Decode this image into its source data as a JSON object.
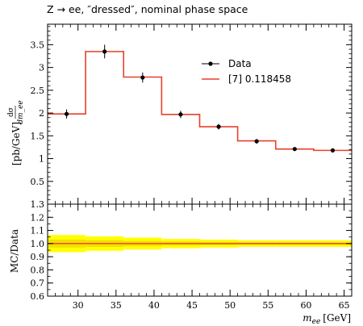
{
  "chart_data": {
    "type": "histogram",
    "title": "Z → ee, ″dressed″, nominal phase space",
    "top_panel": {
      "ylabel_numerator": "dσ",
      "ylabel_denominator": "dm_ee",
      "ylabel_unit": "[pb/GeV]",
      "ylim": [
        0,
        3.95
      ],
      "yticks": [
        "0.5",
        "1",
        "1.5",
        "2",
        "2.5",
        "3",
        "3.5"
      ],
      "ytick_values": [
        0.5,
        1,
        1.5,
        2,
        2.5,
        3,
        3.5
      ]
    },
    "bottom_panel": {
      "ylabel": "MC/Data",
      "ylim": [
        0.6,
        1.3
      ],
      "yticks": [
        "0.6",
        "0.7",
        "0.8",
        "0.9",
        "1.0",
        "1.1",
        "1.2",
        "1.3"
      ],
      "ytick_values": [
        0.6,
        0.7,
        0.8,
        0.9,
        1.0,
        1.1,
        1.2,
        1.3
      ]
    },
    "xlabel_italic": "m",
    "xlabel_sub": "ee",
    "xlabel_unit": "[GeV]",
    "xlim": [
      26,
      66
    ],
    "xticks": [
      "30",
      "35",
      "40",
      "45",
      "50",
      "55",
      "60",
      "65"
    ],
    "xtick_values": [
      30,
      35,
      40,
      45,
      50,
      55,
      60,
      65
    ],
    "bin_edges": [
      26,
      31,
      36,
      41,
      46,
      51,
      56,
      61,
      66
    ],
    "series": [
      {
        "name": "Data",
        "kind": "points",
        "color": "#000000",
        "x": [
          28.5,
          33.5,
          38.5,
          43.5,
          48.5,
          53.5,
          58.5,
          63.5
        ],
        "y": [
          1.98,
          3.35,
          2.78,
          1.97,
          1.7,
          1.38,
          1.21,
          1.18
        ],
        "yerr": [
          0.1,
          0.15,
          0.11,
          0.08,
          0.06,
          0.05,
          0.04,
          0.04
        ]
      },
      {
        "name": "[7] 0.118458",
        "kind": "step",
        "color": "#e8402a",
        "y": [
          1.98,
          3.35,
          2.79,
          1.97,
          1.7,
          1.39,
          1.21,
          1.18
        ]
      }
    ],
    "ratio": {
      "mc_color": "#e8402a",
      "band_color": "#ffff00",
      "band_inner_color": "#f2e000",
      "values": [
        1.0,
        1.0,
        1.0,
        1.0,
        1.0,
        1.0,
        1.0,
        1.0
      ],
      "band_outer": [
        0.065,
        0.055,
        0.045,
        0.035,
        0.03,
        0.025,
        0.025,
        0.025
      ],
      "band_inner": [
        0.03,
        0.025,
        0.02,
        0.015,
        0.012,
        0.01,
        0.01,
        0.01
      ]
    },
    "legend_position": "top-right"
  }
}
